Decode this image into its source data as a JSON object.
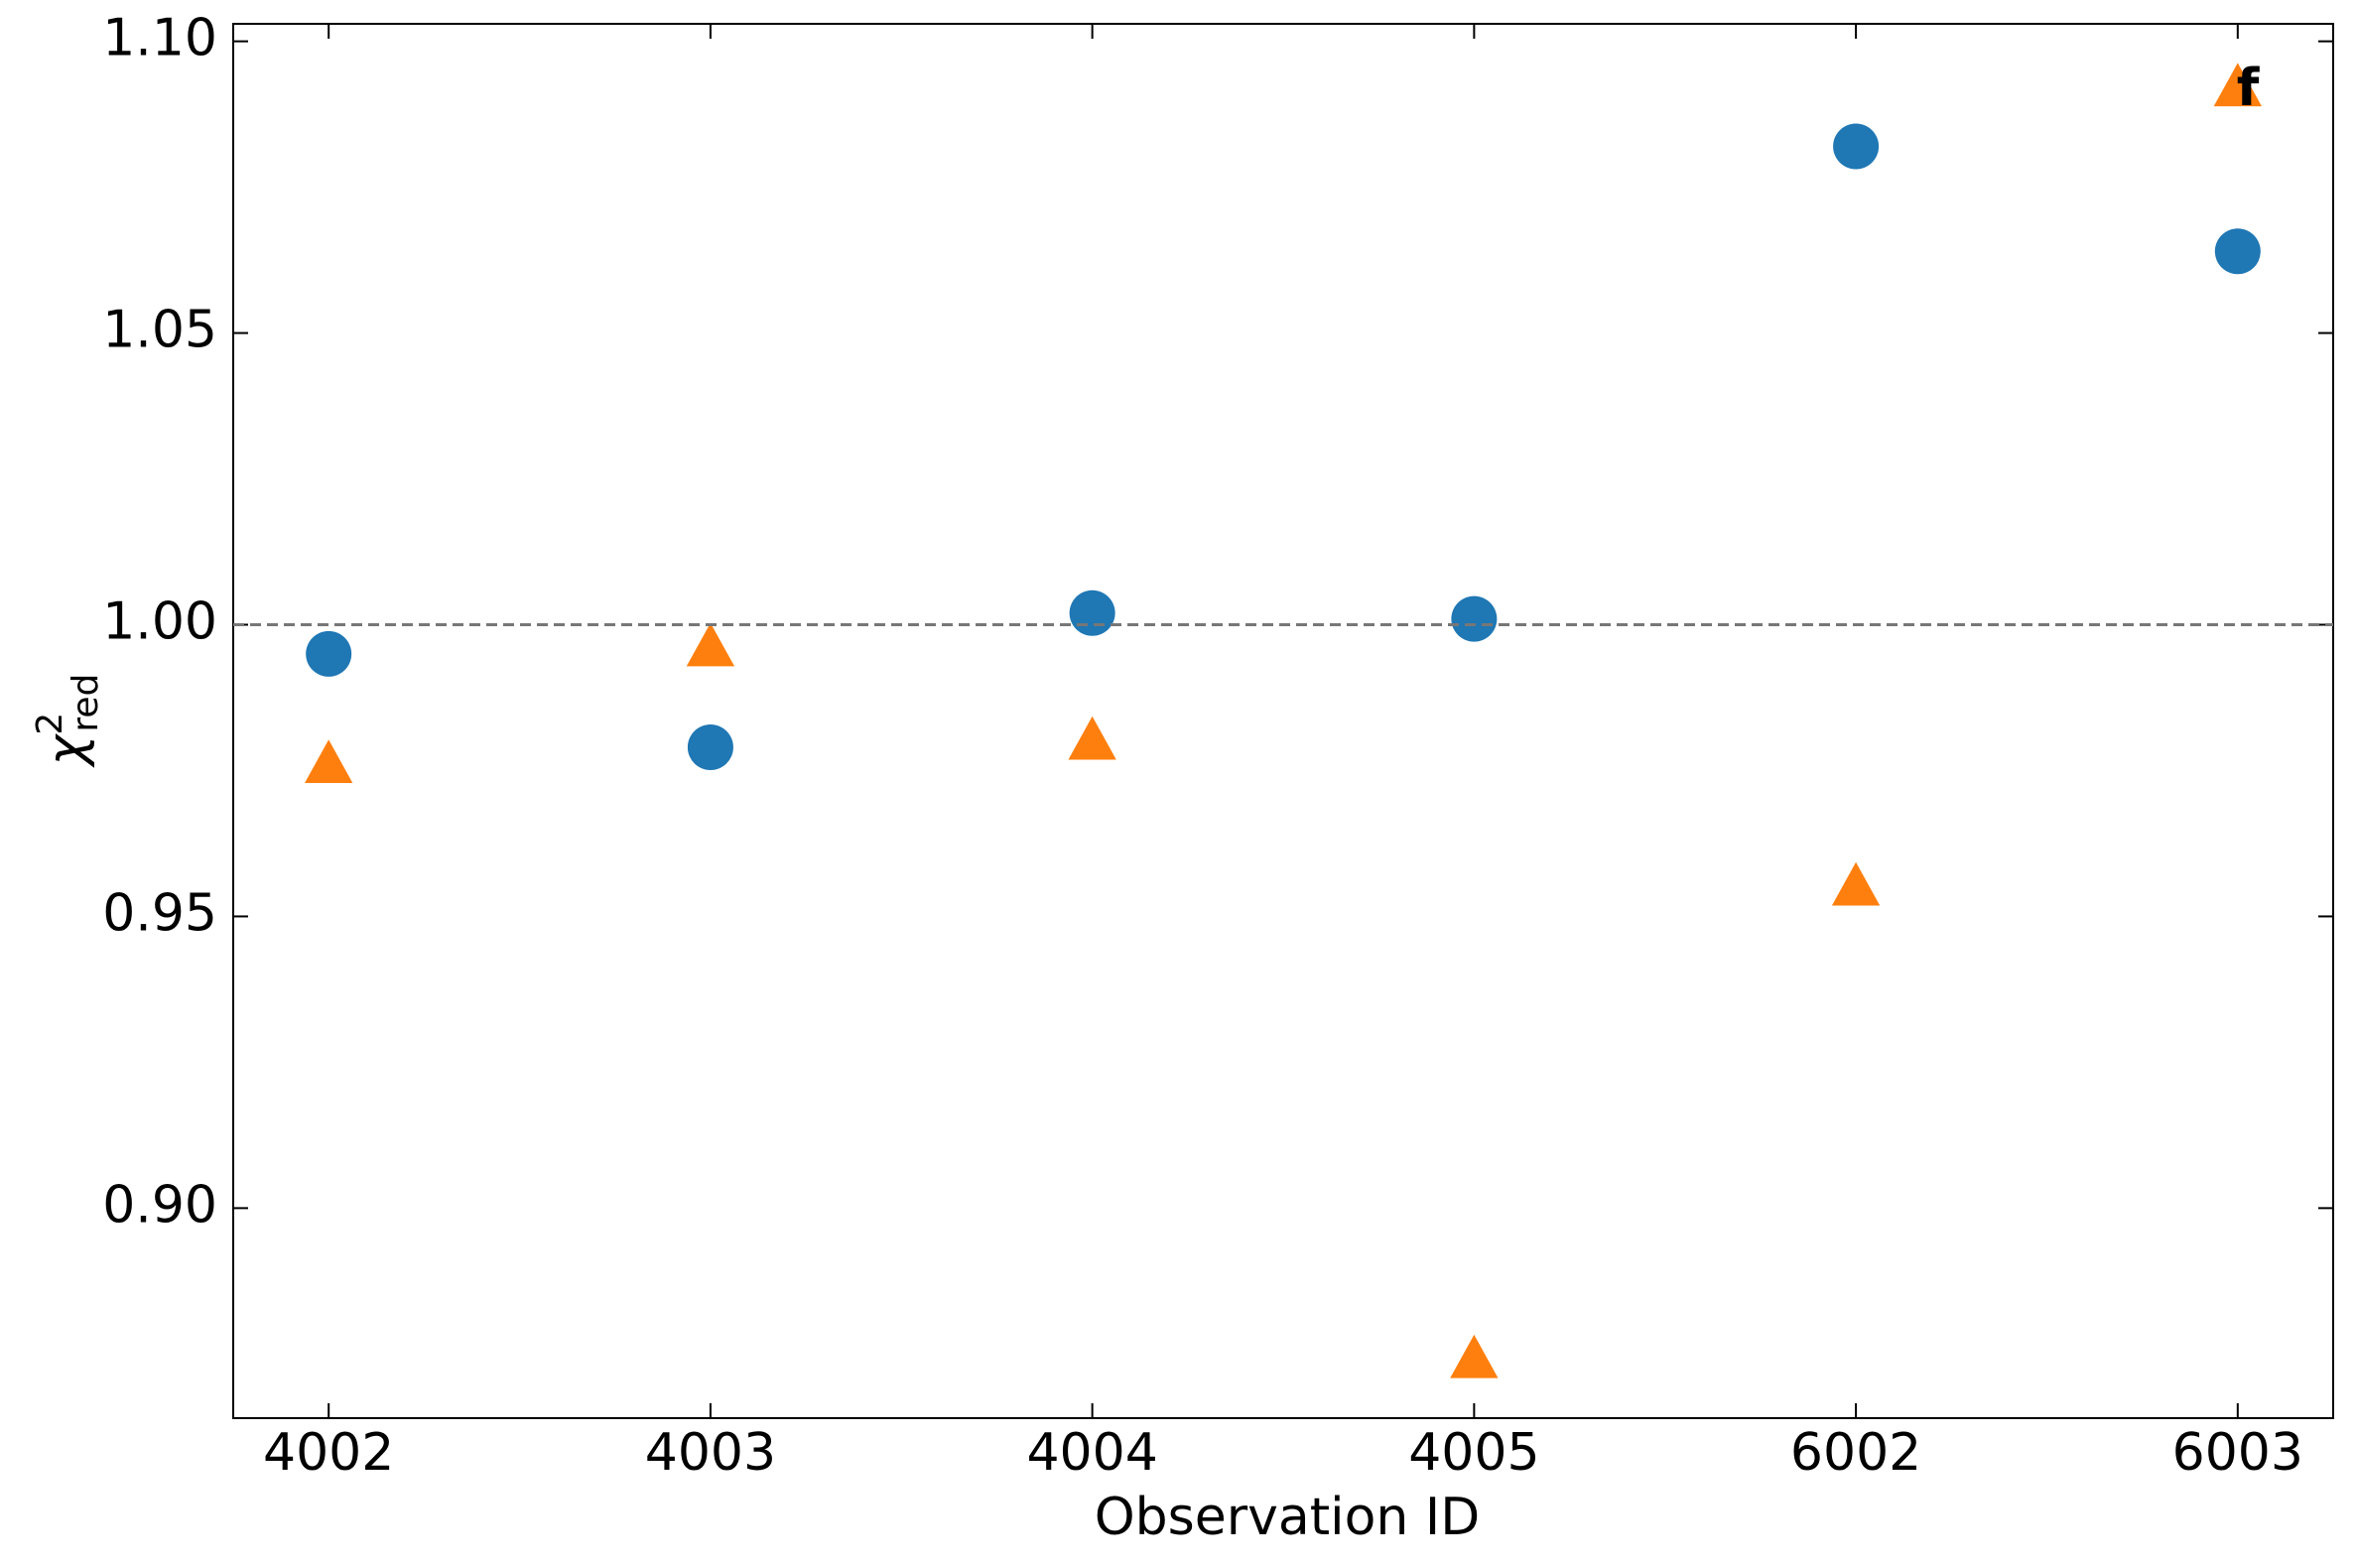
{
  "chart_data": {
    "type": "scatter",
    "annotation": "f",
    "xlabel": "Observation ID",
    "ylabel": {
      "symbol": "χ",
      "sup": "2",
      "sub": "red"
    },
    "categories": [
      "4002",
      "4003",
      "4004",
      "4005",
      "6002",
      "6003"
    ],
    "series": [
      {
        "color": "#1f77b4",
        "marker": "circle",
        "values": [
          0.995,
          0.979,
          1.002,
          1.001,
          1.082,
          1.064
        ]
      },
      {
        "color": "#ff7f0e",
        "marker": "triangle",
        "values": [
          0.976,
          0.996,
          0.98,
          0.874,
          0.955,
          1.092
        ]
      }
    ],
    "hline": 1.0,
    "ylim": [
      0.864,
      1.103
    ],
    "yticks": [
      {
        "value": 0.9,
        "label": "0.90"
      },
      {
        "value": 0.95,
        "label": "0.95"
      },
      {
        "value": 1.0,
        "label": "1.00"
      },
      {
        "value": 1.05,
        "label": "1.05"
      },
      {
        "value": 1.1,
        "label": "1.10"
      }
    ],
    "grid": false
  }
}
